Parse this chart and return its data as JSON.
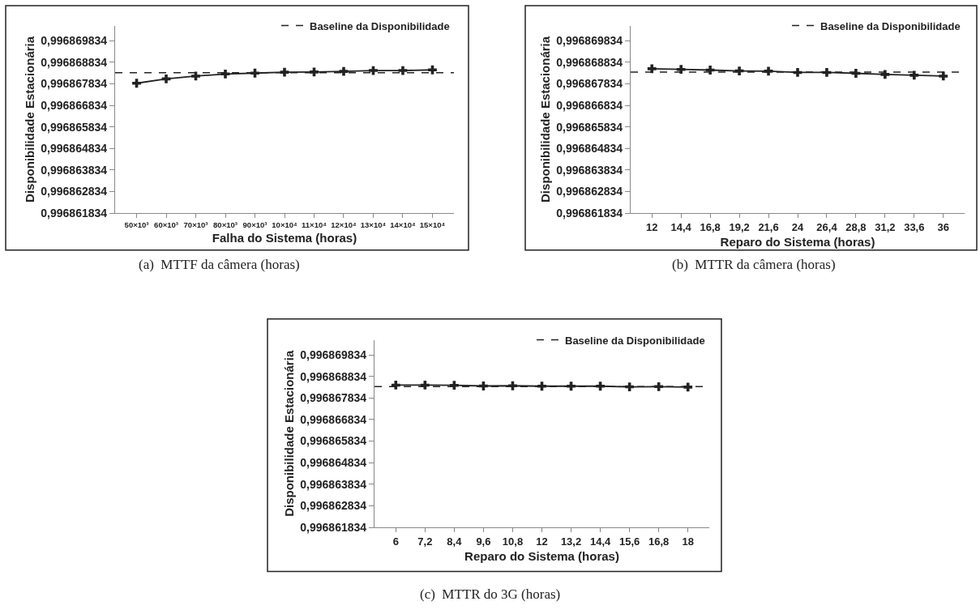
{
  "chart_data": [
    {
      "type": "line",
      "xlabel": "Falha do Sistema (horas)",
      "ylabel": "Disponibilidade Estacionária",
      "categories": [
        "50×10³",
        "60×10³",
        "70×10³",
        "80×10³",
        "90×10³",
        "10×10⁴",
        "11×10⁴",
        "12×10⁴",
        "13×10⁴",
        "14×10⁴",
        "15×10⁴"
      ],
      "series": [
        {
          "color": "#222222",
          "values": [
            0.99686786,
            0.99686806,
            0.99686819,
            0.99686829,
            0.99686833,
            0.99686837,
            0.99686838,
            0.99686841,
            0.99686845,
            0.99686845,
            0.99686848
          ]
        }
      ],
      "ylim": [
        0.996861834,
        0.99687053
      ],
      "yticks": [
        {
          "value": 0.996861834,
          "label": "0,996861834"
        },
        {
          "value": 0.996862834,
          "label": "0,996862834"
        },
        {
          "value": 0.996863834,
          "label": "0,996863834"
        },
        {
          "value": 0.996864834,
          "label": "0,996864834"
        },
        {
          "value": 0.996865834,
          "label": "0,996865834"
        },
        {
          "value": 0.996866834,
          "label": "0,996866834"
        },
        {
          "value": 0.996867834,
          "label": "0,996867834"
        },
        {
          "value": 0.996868834,
          "label": "0,996868834"
        },
        {
          "value": 0.996869834,
          "label": "0,996869834"
        }
      ],
      "ref_lines": [
        {
          "axis": "y",
          "value": 0.99686835,
          "label": "Baseline da Disponibilidade",
          "color": "#222222",
          "line_style": "dashed"
        }
      ],
      "legend": "top right",
      "marker": "cross",
      "line_style": "solid",
      "grid": false,
      "annotations": [
        "(a)  MTTF da câmera (horas)"
      ]
    },
    {
      "type": "line",
      "xlabel": "Reparo do Sistema (horas)",
      "ylabel": "Disponibilidade Estacionária",
      "categories": [
        "12",
        "14,4",
        "16,8",
        "19,2",
        "21,6",
        "24",
        "26,4",
        "28,8",
        "31,2",
        "33,6",
        "36"
      ],
      "series": [
        {
          "color": "#222222",
          "values": [
            0.99686853,
            0.9968685,
            0.99686847,
            0.99686843,
            0.99686842,
            0.99686836,
            0.99686836,
            0.99686832,
            0.99686827,
            0.99686823,
            0.99686819
          ]
        }
      ],
      "ylim": [
        0.996861834,
        0.99687053
      ],
      "yticks": [
        {
          "value": 0.996861834,
          "label": "0,996861834"
        },
        {
          "value": 0.996862834,
          "label": "0,996862834"
        },
        {
          "value": 0.996863834,
          "label": "0,996863834"
        },
        {
          "value": 0.996864834,
          "label": "0,996864834"
        },
        {
          "value": 0.996865834,
          "label": "0,996865834"
        },
        {
          "value": 0.996866834,
          "label": "0,996866834"
        },
        {
          "value": 0.996867834,
          "label": "0,996867834"
        },
        {
          "value": 0.996868834,
          "label": "0,996868834"
        },
        {
          "value": 0.996869834,
          "label": "0,996869834"
        }
      ],
      "ref_lines": [
        {
          "axis": "y",
          "value": 0.99686838,
          "label": "Baseline da Disponibilidade",
          "color": "#222222",
          "line_style": "dashed"
        }
      ],
      "legend": "top right",
      "marker": "cross",
      "line_style": "solid",
      "grid": false,
      "annotations": [
        "(b)  MTTR da câmera (horas)"
      ]
    },
    {
      "type": "line",
      "xlabel": "Reparo do Sistema (horas)",
      "ylabel": "Disponibilidade Estacionária",
      "categories": [
        "6",
        "7,2",
        "8,4",
        "9,6",
        "10,8",
        "12",
        "13,2",
        "14,4",
        "15,6",
        "16,8",
        "18"
      ],
      "series": [
        {
          "color": "#222222",
          "values": [
            0.99686843,
            0.99686843,
            0.99686842,
            0.99686839,
            0.9968684,
            0.99686838,
            0.99686838,
            0.99686838,
            0.99686835,
            0.99686836,
            0.99686834
          ]
        }
      ],
      "ylim": [
        0.996861834,
        0.99687053
      ],
      "yticks": [
        {
          "value": 0.996861834,
          "label": "0,996861834"
        },
        {
          "value": 0.996862834,
          "label": "0,996862834"
        },
        {
          "value": 0.996863834,
          "label": "0,996863834"
        },
        {
          "value": 0.996864834,
          "label": "0,996864834"
        },
        {
          "value": 0.996865834,
          "label": "0,996865834"
        },
        {
          "value": 0.996866834,
          "label": "0,996866834"
        },
        {
          "value": 0.996867834,
          "label": "0,996867834"
        },
        {
          "value": 0.996868834,
          "label": "0,996868834"
        },
        {
          "value": 0.996869834,
          "label": "0,996869834"
        }
      ],
      "ref_lines": [
        {
          "axis": "y",
          "value": 0.99686836,
          "label": "Baseline da Disponibilidade",
          "color": "#222222",
          "line_style": "dashed"
        }
      ],
      "legend": "top right",
      "marker": "cross",
      "line_style": "solid",
      "grid": false,
      "annotations": [
        "(c)  MTTR do 3G (horas)"
      ]
    }
  ]
}
